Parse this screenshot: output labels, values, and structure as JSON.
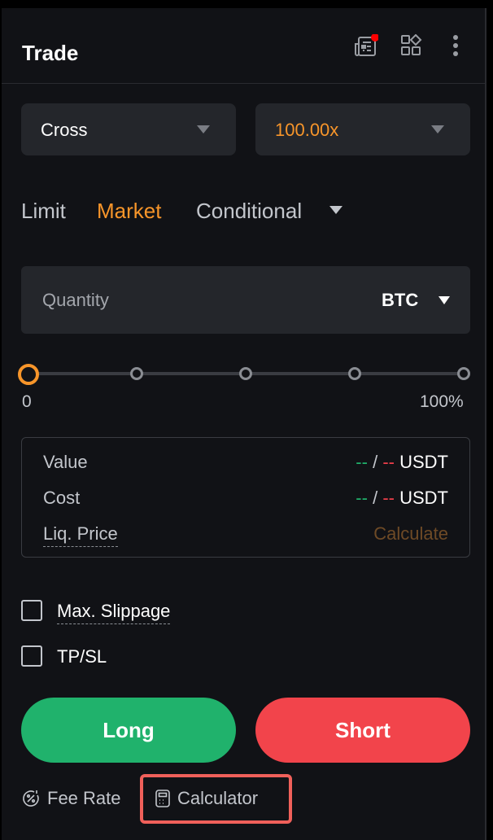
{
  "header": {
    "title": "Trade",
    "icons": [
      "news-icon",
      "widgets-icon",
      "more-icon"
    ],
    "notification_color": "#ff0000"
  },
  "margin_mode": {
    "value": "Cross"
  },
  "leverage": {
    "value": "100.00x",
    "color": "#f7952a"
  },
  "order_tabs": [
    {
      "label": "Limit",
      "active": false
    },
    {
      "label": "Market",
      "active": true
    },
    {
      "label": "Conditional",
      "active": false
    }
  ],
  "quantity": {
    "placeholder": "Quantity",
    "unit": "BTC"
  },
  "slider": {
    "min_label": "0",
    "max_label": "100%",
    "value_percent": 0
  },
  "info": {
    "value": {
      "label": "Value",
      "long": "--",
      "sep": "/",
      "short": "--",
      "unit": "USDT"
    },
    "cost": {
      "label": "Cost",
      "long": "--",
      "sep": "/",
      "short": "--",
      "unit": "USDT"
    },
    "liq": {
      "label": "Liq. Price",
      "action": "Calculate"
    }
  },
  "options": {
    "slippage": {
      "label": "Max. Slippage",
      "checked": false
    },
    "tpsl": {
      "label": "TP/SL",
      "checked": false
    }
  },
  "buttons": {
    "long": "Long",
    "short": "Short",
    "long_color": "#20b26c",
    "short_color": "#f2444b"
  },
  "footer": {
    "fee_rate": "Fee Rate",
    "calculator": "Calculator",
    "highlight_color": "#f0605a"
  }
}
